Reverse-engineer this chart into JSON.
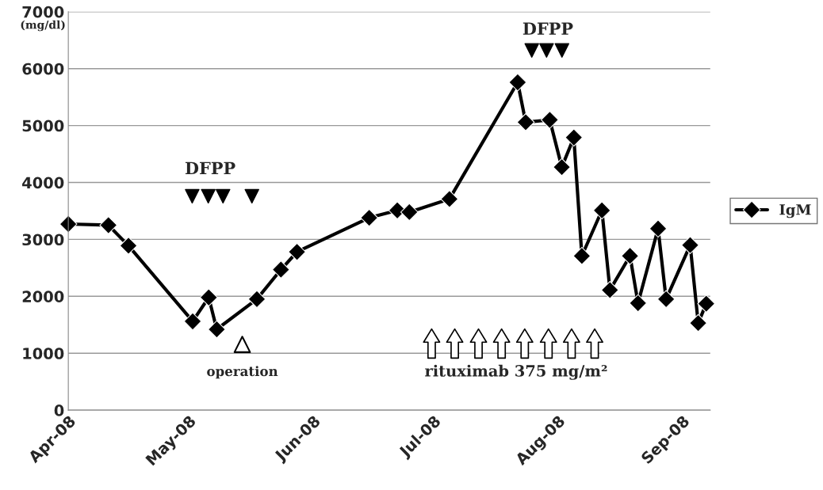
{
  "chart_data": {
    "type": "line",
    "ylabel": "(mg/dl)",
    "x": [
      "2008-04-01",
      "2008-04-11",
      "2008-04-16",
      "2008-05-02",
      "2008-05-06",
      "2008-05-08",
      "2008-05-18",
      "2008-05-24",
      "2008-05-28",
      "2008-06-15",
      "2008-06-22",
      "2008-06-25",
      "2008-07-05",
      "2008-07-22",
      "2008-07-24",
      "2008-07-30",
      "2008-08-02",
      "2008-08-05",
      "2008-08-07",
      "2008-08-12",
      "2008-08-14",
      "2008-08-19",
      "2008-08-21",
      "2008-08-26",
      "2008-08-28",
      "2008-09-03",
      "2008-09-05",
      "2008-09-07"
    ],
    "series": [
      {
        "name": "IgM",
        "color": "#000000",
        "values": [
          3270,
          3250,
          2890,
          1560,
          1980,
          1420,
          1950,
          2470,
          2780,
          3380,
          3510,
          3480,
          3710,
          5760,
          5060,
          5100,
          4270,
          4790,
          2710,
          3510,
          2110,
          2710,
          1880,
          3190,
          1950,
          2900,
          1530,
          1870
        ]
      }
    ],
    "xlim": [
      "2008-04-01",
      "2008-09-08"
    ],
    "xticks": [
      {
        "value": "2008-04-01",
        "label": "Apr-08"
      },
      {
        "value": "2008-05-01",
        "label": "May-08"
      },
      {
        "value": "2008-06-01",
        "label": "Jun-08"
      },
      {
        "value": "2008-07-01",
        "label": "Jul-08"
      },
      {
        "value": "2008-08-01",
        "label": "Aug-08"
      },
      {
        "value": "2008-09-01",
        "label": "Sep-08"
      }
    ],
    "ylim": [
      0,
      7000
    ],
    "yticks": [
      0,
      1000,
      2000,
      3000,
      4000,
      5000,
      6000,
      7000
    ],
    "grid": "y",
    "legend": "right",
    "marker": "diamond",
    "line_style": "solid",
    "annotations": [
      "DFPP",
      "DFPP",
      "operation",
      "rituximab 375 mg/m²"
    ]
  }
}
